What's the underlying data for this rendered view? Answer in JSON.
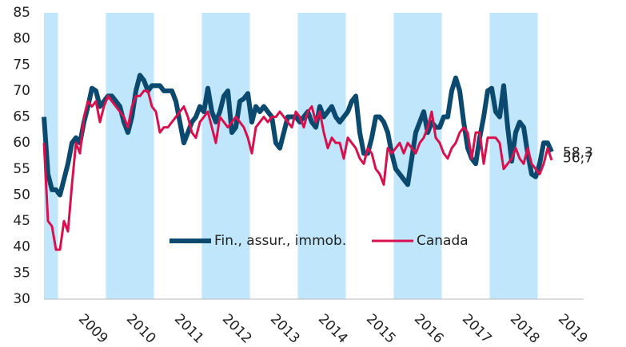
{
  "chart_data": {
    "type": "line",
    "categories": [
      null,
      null,
      null,
      null,
      "2009",
      null,
      null,
      null,
      null,
      null,
      null,
      null,
      null,
      null,
      null,
      null,
      "2010",
      null,
      null,
      null,
      null,
      null,
      null,
      null,
      null,
      null,
      null,
      null,
      "2011",
      null,
      null,
      null,
      null,
      null,
      null,
      null,
      null,
      null,
      null,
      null,
      "2012",
      null,
      null,
      null,
      null,
      null,
      null,
      null,
      null,
      null,
      null,
      null,
      "2013",
      null,
      null,
      null,
      null,
      null,
      null,
      null,
      null,
      null,
      null,
      null,
      "2014",
      null,
      null,
      null,
      null,
      null,
      null,
      null,
      null,
      null,
      null,
      null,
      "2015",
      null,
      null,
      null,
      null,
      null,
      null,
      null,
      null,
      null,
      null,
      null,
      "2016",
      null,
      null,
      null,
      null,
      null,
      null,
      null,
      null,
      null,
      null,
      null,
      "2017",
      null,
      null,
      null,
      null,
      null,
      null,
      null,
      null,
      null,
      null,
      null,
      "2018",
      null,
      null,
      null,
      null,
      null,
      null,
      null,
      null,
      null,
      null,
      null,
      "2019",
      null,
      null,
      null
    ],
    "series": [
      {
        "name": "Fin., assur., immob.",
        "color": "#0b4a6e",
        "values": [
          65,
          54,
          51,
          51,
          50,
          53,
          56,
          60,
          61,
          60,
          64,
          67,
          70.5,
          70,
          67,
          68,
          69,
          69,
          68,
          67,
          64,
          62,
          65,
          70,
          73,
          72,
          70,
          71,
          71,
          71,
          70,
          70,
          70,
          68,
          64,
          60,
          62,
          64,
          65,
          67,
          66,
          70.5,
          66,
          64,
          66,
          69,
          70,
          62,
          63,
          68,
          68.5,
          69.5,
          64,
          67,
          66,
          67,
          66,
          65,
          60,
          59,
          62,
          65,
          65,
          65,
          64,
          65,
          66,
          64,
          63,
          67,
          65,
          66,
          67,
          65,
          64,
          65,
          66,
          68,
          69,
          62,
          58,
          58,
          61,
          65,
          65,
          64,
          62,
          58,
          55,
          54,
          53,
          52,
          57,
          62,
          64,
          66,
          62,
          64,
          63,
          63,
          65,
          65,
          70,
          72.5,
          70,
          64,
          59,
          57,
          56,
          61,
          65,
          70,
          70.5,
          66,
          65,
          71,
          63,
          56.5,
          62,
          64,
          63,
          58,
          54,
          53.5,
          56,
          60,
          60,
          58.3
        ],
        "value_labels": {
          "127": "58,3"
        }
      },
      {
        "name": "Canada",
        "color": "#d8114e",
        "values": [
          60,
          45,
          44,
          39.5,
          39.5,
          45,
          43,
          52,
          60,
          58,
          65,
          68,
          67,
          68,
          64,
          67,
          69,
          68,
          67,
          66,
          65,
          63,
          67,
          69,
          69,
          70,
          70,
          67,
          66,
          62,
          63,
          63,
          64,
          65,
          66,
          67,
          65,
          62,
          61,
          64,
          65,
          66,
          63,
          60,
          65,
          64,
          63,
          64,
          65,
          64,
          63,
          61,
          58,
          63,
          64,
          65,
          64,
          65,
          65,
          66,
          65,
          64,
          63,
          66,
          65,
          63,
          66,
          67,
          64,
          66,
          62,
          59,
          61,
          60,
          60,
          57,
          61,
          60,
          59,
          57,
          56,
          59,
          58,
          55,
          54,
          52,
          59,
          58,
          59,
          60,
          58,
          60,
          59,
          58,
          60,
          61,
          63,
          66,
          61,
          60,
          58,
          57,
          59,
          60,
          62,
          63,
          62,
          57,
          62,
          62,
          56,
          61,
          61,
          61,
          60,
          55,
          56,
          57,
          59,
          57,
          56,
          59,
          56,
          55,
          54,
          56,
          59,
          56.7
        ],
        "value_labels": {
          "127": "56,7"
        }
      }
    ],
    "ylim": [
      30,
      85
    ],
    "yticks": [
      30,
      35,
      40,
      45,
      50,
      55,
      60,
      65,
      70,
      75,
      80,
      85
    ],
    "band_color": "#bfe6fa",
    "grid": false
  }
}
